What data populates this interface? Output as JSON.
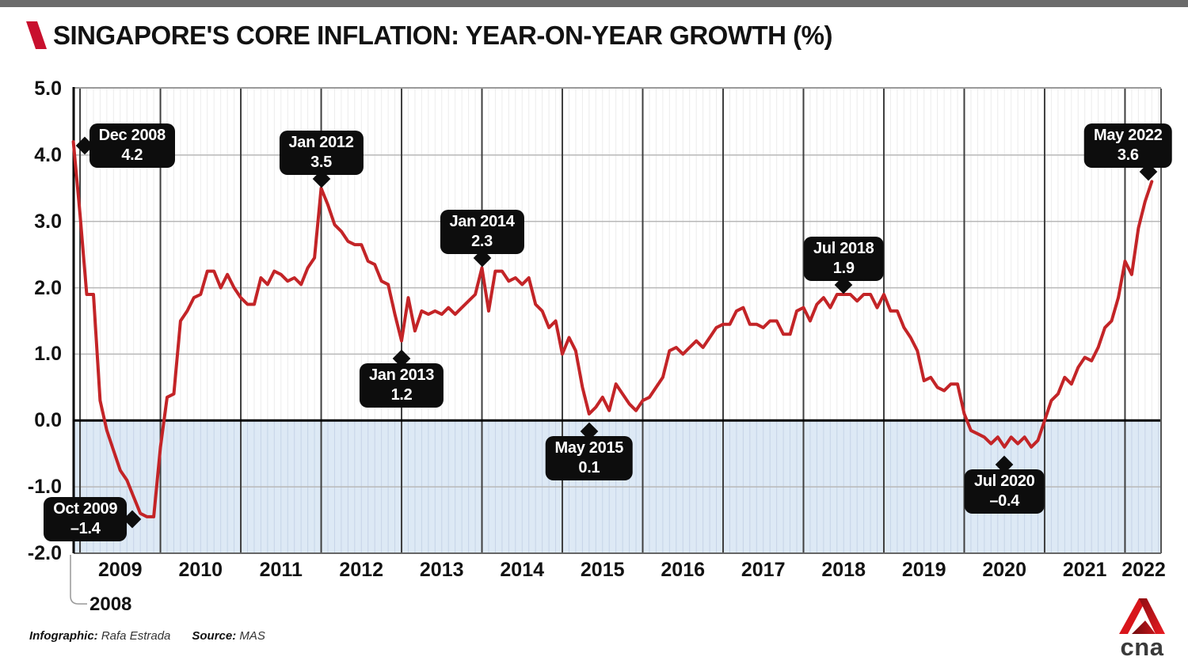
{
  "header": {
    "title": "SINGAPORE'S CORE INFLATION: YEAR-ON-YEAR GROWTH (%)"
  },
  "footer": {
    "infographic_label": "Infographic:",
    "infographic_credit": "Rafa Estrada",
    "source_label": "Source:",
    "source_value": "MAS",
    "brand": "cna"
  },
  "colors": {
    "topbar_gray": "#6b6b6b",
    "accent_red": "#c8102e",
    "line_red": "#c32427",
    "below_zero_fill": "#dde9f5",
    "minor_grid_white": "#ececec",
    "minor_grid_blue": "#c6d4e7",
    "major_year_grid": "#3f3f3f",
    "h_grid": "#b8b8b8",
    "zero_line": "#000000",
    "callout_bg": "#0d0d0d",
    "logo_red": "#d8151b",
    "logo_red_dark": "#8e0d12",
    "logo_text": "#3a3a3a"
  },
  "chart_data": {
    "type": "line",
    "title": "SINGAPORE'S CORE INFLATION: YEAR-ON-YEAR GROWTH (%)",
    "unit": "%",
    "frequency": "monthly",
    "x_range": [
      "Dec 2008",
      "May 2022"
    ],
    "ylim": [
      -2.0,
      5.0
    ],
    "grid": true,
    "shaded_below_zero": true,
    "y_axis": {
      "tick_labels": [
        "5.0",
        "4.0",
        "3.0",
        "2.0",
        "1.0",
        "0.0",
        "-1.0",
        "-2.0"
      ],
      "tick_values": [
        5.0,
        4.0,
        3.0,
        2.0,
        1.0,
        0.0,
        -1.0,
        -2.0
      ]
    },
    "x_axis": {
      "start_year_label": "2008",
      "year_labels": [
        "2009",
        "2010",
        "2011",
        "2012",
        "2013",
        "2014",
        "2015",
        "2016",
        "2017",
        "2018",
        "2019",
        "2020",
        "2021",
        "2022"
      ]
    },
    "series": [
      {
        "name": "Core inflation year-on-year growth (%)",
        "start": "2008-12",
        "end": "2022-05",
        "values": [
          4.2,
          3.1,
          1.9,
          1.9,
          0.3,
          -0.15,
          -0.45,
          -0.75,
          -0.9,
          -1.15,
          -1.4,
          -1.45,
          -1.45,
          -0.4,
          0.35,
          0.4,
          1.5,
          1.65,
          1.85,
          1.9,
          2.25,
          2.25,
          2.0,
          2.2,
          2.0,
          1.85,
          1.75,
          1.75,
          2.15,
          2.05,
          2.25,
          2.2,
          2.1,
          2.15,
          2.05,
          2.3,
          2.45,
          3.5,
          3.25,
          2.95,
          2.85,
          2.7,
          2.65,
          2.65,
          2.4,
          2.35,
          2.1,
          2.05,
          1.6,
          1.2,
          1.85,
          1.35,
          1.65,
          1.6,
          1.65,
          1.6,
          1.7,
          1.6,
          1.7,
          1.8,
          1.9,
          2.3,
          1.65,
          2.25,
          2.25,
          2.1,
          2.15,
          2.05,
          2.15,
          1.75,
          1.65,
          1.4,
          1.5,
          1.0,
          1.25,
          1.05,
          0.5,
          0.1,
          0.2,
          0.35,
          0.15,
          0.55,
          0.4,
          0.25,
          0.15,
          0.3,
          0.35,
          0.5,
          0.65,
          1.05,
          1.1,
          1.0,
          1.1,
          1.2,
          1.1,
          1.25,
          1.4,
          1.45,
          1.45,
          1.65,
          1.7,
          1.45,
          1.45,
          1.4,
          1.5,
          1.5,
          1.3,
          1.3,
          1.65,
          1.7,
          1.5,
          1.75,
          1.85,
          1.7,
          1.9,
          1.9,
          1.9,
          1.8,
          1.9,
          1.9,
          1.7,
          1.9,
          1.65,
          1.65,
          1.4,
          1.25,
          1.05,
          0.6,
          0.65,
          0.5,
          0.45,
          0.55,
          0.55,
          0.1,
          -0.15,
          -0.2,
          -0.25,
          -0.35,
          -0.25,
          -0.4,
          -0.25,
          -0.35,
          -0.25,
          -0.4,
          -0.3,
          0.0,
          0.3,
          0.4,
          0.65,
          0.55,
          0.8,
          0.95,
          0.9,
          1.1,
          1.4,
          1.5,
          1.85,
          2.4,
          2.2,
          2.9,
          3.3,
          3.6
        ]
      }
    ],
    "annotations": [
      {
        "label": "Dec 2008",
        "value_label": "4.2",
        "value": 4.2,
        "month": "2008-12",
        "index": 0,
        "placement": "right"
      },
      {
        "label": "Oct 2009",
        "value_label": "–1.4",
        "value": -1.4,
        "month": "2009-10",
        "index": 10,
        "placement": "left"
      },
      {
        "label": "Jan 2012",
        "value_label": "3.5",
        "value": 3.5,
        "month": "2012-01",
        "index": 37,
        "placement": "above"
      },
      {
        "label": "Jan 2013",
        "value_label": "1.2",
        "value": 1.2,
        "month": "2013-01",
        "index": 49,
        "placement": "below"
      },
      {
        "label": "Jan 2014",
        "value_label": "2.3",
        "value": 2.3,
        "month": "2014-01",
        "index": 61,
        "placement": "above"
      },
      {
        "label": "May 2015",
        "value_label": "0.1",
        "value": 0.1,
        "month": "2015-05",
        "index": 77,
        "placement": "below"
      },
      {
        "label": "Jul 2018",
        "value_label": "1.9",
        "value": 1.9,
        "month": "2018-07",
        "index": 115,
        "placement": "above"
      },
      {
        "label": "Jul 2020",
        "value_label": "–0.4",
        "value": -0.4,
        "month": "2020-07",
        "index": 139,
        "placement": "below"
      },
      {
        "label": "May 2022",
        "value_label": "3.6",
        "value": 3.6,
        "month": "2022-05",
        "index": 161,
        "placement": "above",
        "shift_x": -30,
        "pointer_shift_x": 26
      }
    ]
  }
}
